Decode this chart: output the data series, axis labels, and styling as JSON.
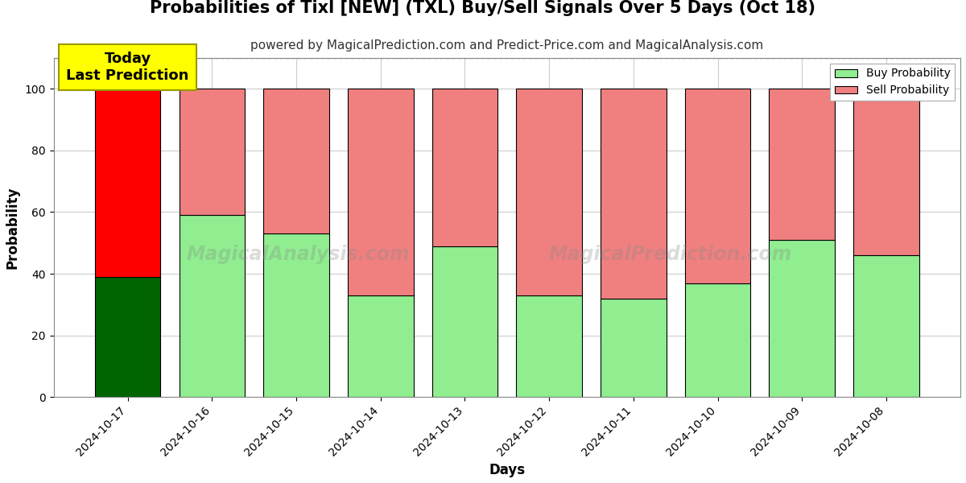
{
  "title": "Probabilities of Tixl [NEW] (TXL) Buy/Sell Signals Over 5 Days (Oct 18)",
  "subtitle": "powered by MagicalPrediction.com and Predict-Price.com and MagicalAnalysis.com",
  "xlabel": "Days",
  "ylabel": "Probability",
  "dates": [
    "2024-10-17",
    "2024-10-16",
    "2024-10-15",
    "2024-10-14",
    "2024-10-13",
    "2024-10-12",
    "2024-10-11",
    "2024-10-10",
    "2024-10-09",
    "2024-10-08"
  ],
  "buy_values": [
    39,
    59,
    53,
    33,
    49,
    33,
    32,
    37,
    51,
    46
  ],
  "sell_values": [
    61,
    41,
    47,
    67,
    51,
    67,
    68,
    63,
    49,
    54
  ],
  "today_buy_color": "#006400",
  "today_sell_color": "#FF0000",
  "buy_color": "#90EE90",
  "sell_color": "#F08080",
  "bar_edge_color": "#000000",
  "annotation_text": "Today\nLast Prediction",
  "annotation_bg_color": "#FFFF00",
  "ylim": [
    0,
    110
  ],
  "yticks": [
    0,
    20,
    40,
    60,
    80,
    100
  ],
  "dashed_line_y": 110,
  "watermark_text1": "MagicalAnalysis.com",
  "watermark_text2": "MagicalPrediction.com",
  "background_color": "#FFFFFF",
  "grid_color": "#CCCCCC",
  "title_fontsize": 15,
  "subtitle_fontsize": 11,
  "label_fontsize": 12
}
